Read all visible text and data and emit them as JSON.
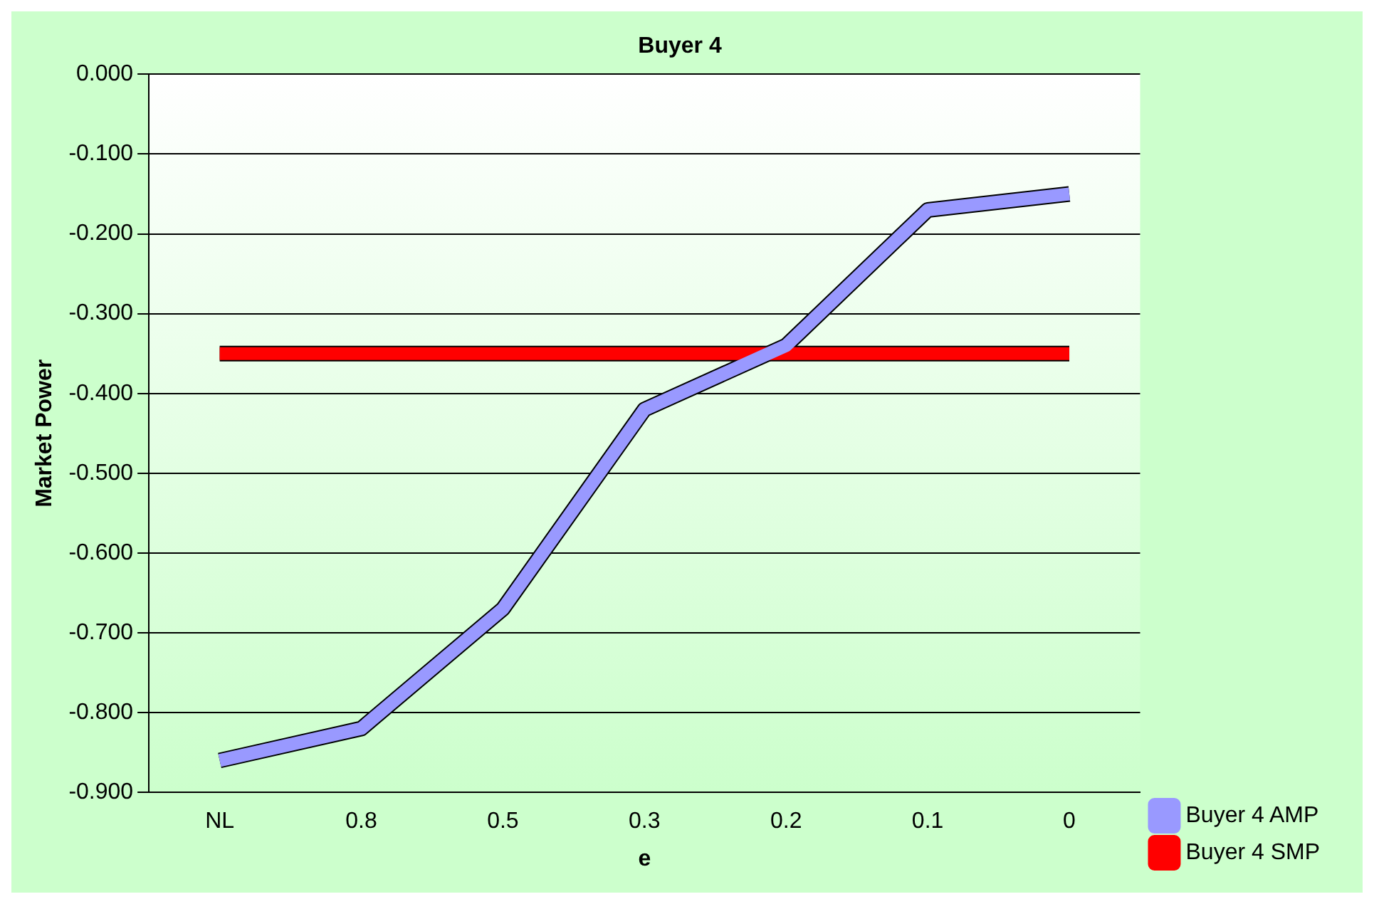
{
  "chart_data": {
    "type": "line",
    "title": "Buyer 4",
    "xlabel": "e",
    "ylabel": "Market Power",
    "categories": [
      "NL",
      "0.8",
      "0.5",
      "0.3",
      "0.2",
      "0.1",
      "0"
    ],
    "series": [
      {
        "name": "Buyer 4 AMP",
        "color": "#9999ff",
        "values": [
          -0.86,
          -0.82,
          -0.67,
          -0.42,
          -0.34,
          -0.17,
          -0.15
        ]
      },
      {
        "name": "Buyer 4 SMP",
        "color": "#ff0000",
        "values": [
          -0.35,
          -0.35,
          -0.35,
          -0.35,
          -0.35,
          -0.35,
          -0.35
        ]
      }
    ],
    "ylim": [
      -0.9,
      0
    ],
    "yticks": [
      {
        "value": -0.9,
        "label": "-0.900"
      },
      {
        "value": -0.8,
        "label": "-0.800"
      },
      {
        "value": -0.7,
        "label": "-0.700"
      },
      {
        "value": -0.6,
        "label": "-0.600"
      },
      {
        "value": -0.5,
        "label": "-0.500"
      },
      {
        "value": -0.4,
        "label": "-0.400"
      },
      {
        "value": -0.3,
        "label": "-0.300"
      },
      {
        "value": -0.2,
        "label": "-0.200"
      },
      {
        "value": -0.1,
        "label": "-0.100"
      },
      {
        "value": 0,
        "label": "0.000"
      }
    ],
    "grid": "y",
    "legend": "right",
    "marker": "none",
    "line_style": "solid"
  }
}
